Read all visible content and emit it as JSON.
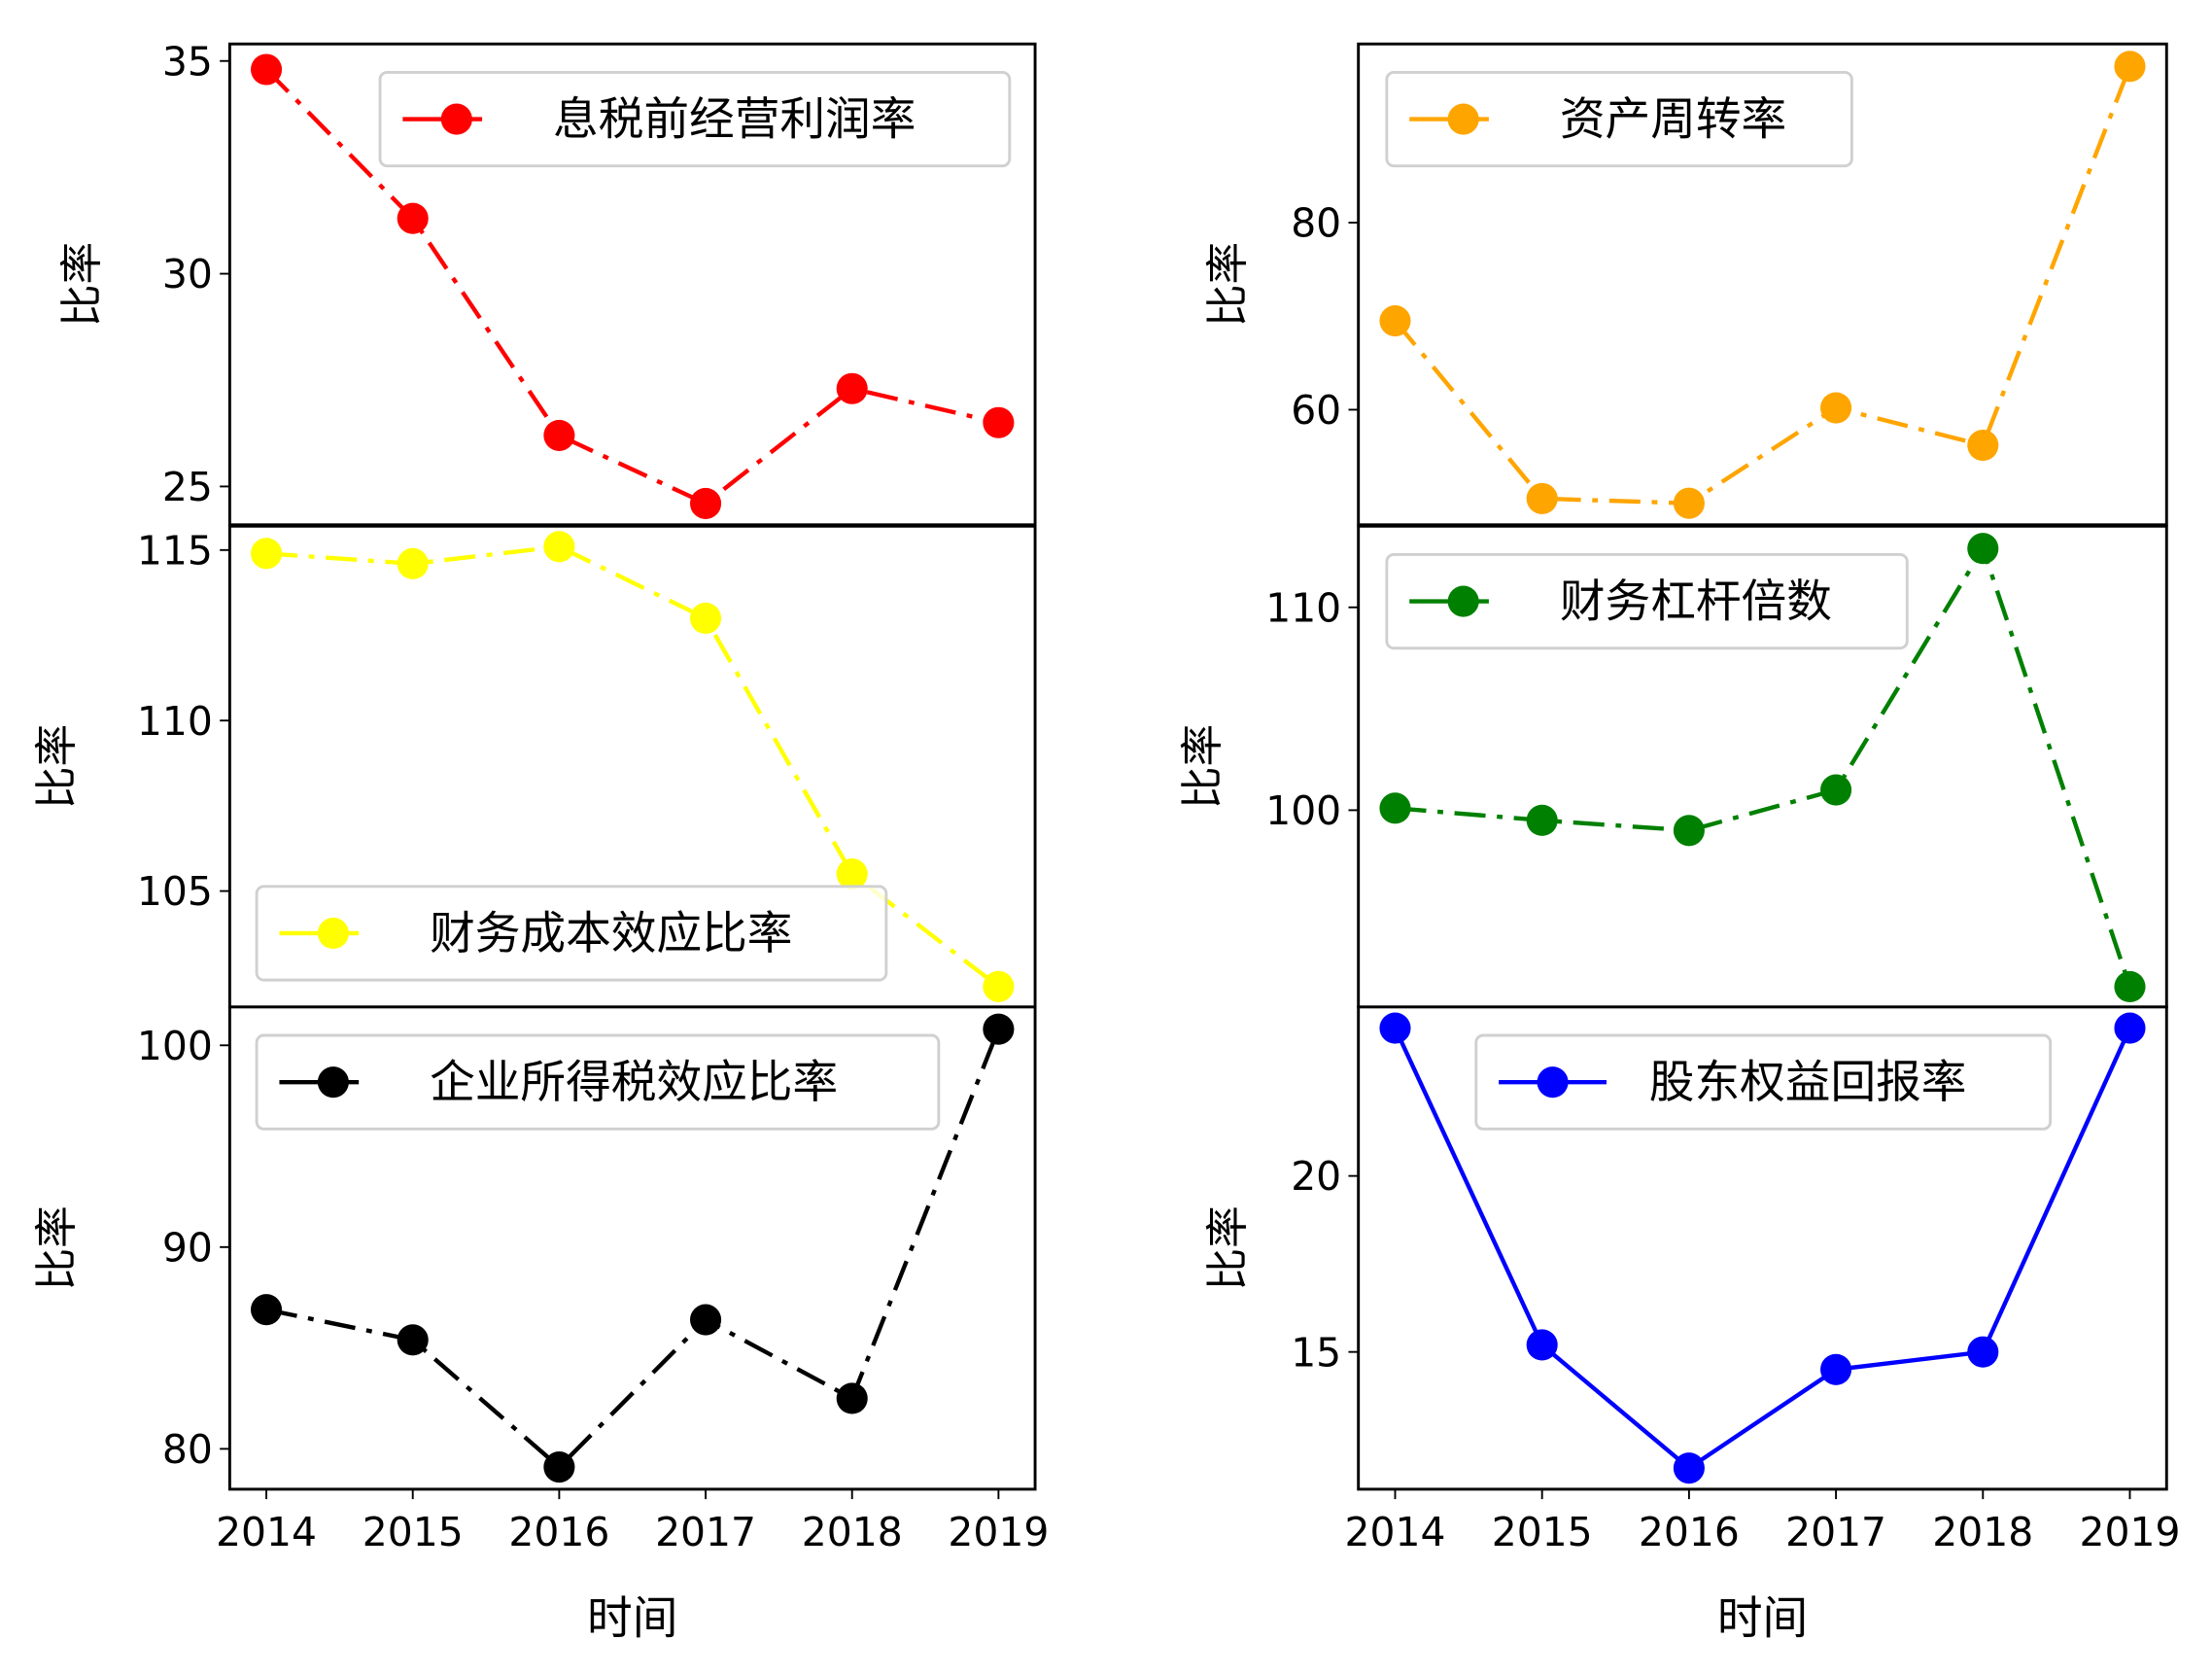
{
  "chart_data": [
    {
      "type": "line",
      "position": "top-left",
      "x": [
        2014,
        2015,
        2016,
        2017,
        2018,
        2019
      ],
      "series": [
        {
          "name": "息税前经营利润率",
          "values": [
            34.8,
            31.3,
            26.2,
            24.6,
            27.3,
            26.5
          ],
          "color": "#ff0000",
          "linestyle": "dashdot",
          "marker": "circle"
        }
      ],
      "ylabel": "比率",
      "yticks": [
        25,
        30,
        35
      ],
      "ylim": [
        24.1,
        35.4
      ],
      "legend": "upper right",
      "xticklabels_hidden_by_next_panel": true
    },
    {
      "type": "line",
      "position": "top-right",
      "x": [
        2014,
        2015,
        2016,
        2017,
        2018,
        2019
      ],
      "series": [
        {
          "name": "资产周转率",
          "values": [
            69.5,
            50.5,
            50.0,
            60.2,
            56.2,
            96.7
          ],
          "color": "#ffa500",
          "linestyle": "dashdot",
          "marker": "circle"
        }
      ],
      "ylabel": "比率",
      "yticks": [
        60,
        80
      ],
      "ylim": [
        47.7,
        99.1
      ],
      "legend": "upper left",
      "xticklabels_hidden_by_next_panel": true
    },
    {
      "type": "line",
      "position": "middle-left",
      "x": [
        2014,
        2015,
        2016,
        2017,
        2018,
        2019
      ],
      "series": [
        {
          "name": "财务成本效应比率",
          "values": [
            114.9,
            114.6,
            115.1,
            113.0,
            105.5,
            102.2
          ],
          "color": "#ffff00",
          "linestyle": "dashdot",
          "marker": "circle"
        }
      ],
      "ylabel": "比率",
      "yticks": [
        105,
        110,
        115
      ],
      "ylim": [
        101.6,
        115.7
      ],
      "legend": "lower left",
      "xticklabels_hidden_by_next_panel": true
    },
    {
      "type": "line",
      "position": "middle-right",
      "x": [
        2014,
        2015,
        2016,
        2017,
        2018,
        2019
      ],
      "series": [
        {
          "name": "财务杠杆倍数",
          "values": [
            100.1,
            99.5,
            99.0,
            101.0,
            112.9,
            91.3
          ],
          "color": "#008000",
          "linestyle": "dashdot",
          "marker": "circle"
        }
      ],
      "ylabel": "比率",
      "yticks": [
        100,
        110
      ],
      "ylim": [
        90.3,
        114.0
      ],
      "legend": "upper left",
      "xticklabels_hidden_by_next_panel": true
    },
    {
      "type": "line",
      "position": "bottom-left",
      "x": [
        2014,
        2015,
        2016,
        2017,
        2018,
        2019
      ],
      "series": [
        {
          "name": "企业所得税效应比率",
          "values": [
            86.9,
            85.4,
            79.1,
            86.4,
            82.5,
            100.8
          ],
          "color": "#000000",
          "linestyle": "dashdot",
          "marker": "circle"
        }
      ],
      "xlabel": "时间",
      "ylabel": "比率",
      "yticks": [
        80,
        90,
        100
      ],
      "ylim": [
        78.0,
        101.9
      ],
      "legend": "upper left"
    },
    {
      "type": "line",
      "position": "bottom-right",
      "x": [
        2014,
        2015,
        2016,
        2017,
        2018,
        2019
      ],
      "series": [
        {
          "name": "股东权益回报率",
          "values": [
            24.2,
            15.2,
            11.7,
            14.5,
            15.0,
            24.2
          ],
          "color": "#0000ff",
          "linestyle": "solid",
          "marker": "circle"
        }
      ],
      "xlabel": "时间",
      "ylabel": "比率",
      "yticks": [
        15,
        20
      ],
      "ylim": [
        11.1,
        24.8
      ],
      "legend": "upper center"
    }
  ]
}
